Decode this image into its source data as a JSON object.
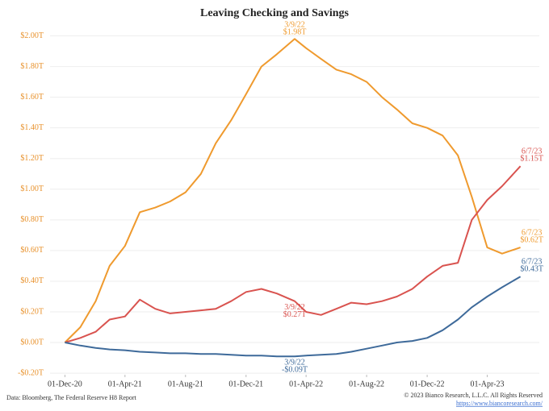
{
  "chart_data": {
    "type": "line",
    "title": "Leaving Checking and Savings",
    "x": [
      "2020-12-01",
      "2021-01-01",
      "2021-02-01",
      "2021-03-01",
      "2021-04-01",
      "2021-05-01",
      "2021-06-01",
      "2021-07-01",
      "2021-08-01",
      "2021-09-01",
      "2021-10-01",
      "2021-11-01",
      "2021-12-01",
      "2022-01-01",
      "2022-02-01",
      "2022-03-09",
      "2022-04-01",
      "2022-05-01",
      "2022-06-01",
      "2022-07-01",
      "2022-08-01",
      "2022-09-01",
      "2022-10-01",
      "2022-11-01",
      "2022-12-01",
      "2023-01-01",
      "2023-02-01",
      "2023-03-01",
      "2023-04-01",
      "2023-05-01",
      "2023-06-07"
    ],
    "series": [
      {
        "color": "#ef9a2e",
        "values": [
          0,
          0.1,
          0.27,
          0.5,
          0.63,
          0.85,
          0.88,
          0.92,
          0.98,
          1.1,
          1.3,
          1.45,
          1.62,
          1.8,
          1.88,
          1.98,
          1.92,
          1.85,
          1.78,
          1.75,
          1.7,
          1.6,
          1.52,
          1.43,
          1.4,
          1.35,
          1.22,
          0.95,
          0.62,
          0.58,
          0.62
        ],
        "annotations": [
          {
            "x": "2022-03-09",
            "date": "3/9/22",
            "value": 1.98,
            "label": "$1.98T"
          },
          {
            "x": "2023-06-07",
            "date": "6/7/23",
            "value": 0.62,
            "label": "$0.62T"
          }
        ]
      },
      {
        "color": "#d9534f",
        "values": [
          0,
          0.03,
          0.07,
          0.15,
          0.17,
          0.28,
          0.22,
          0.19,
          0.2,
          0.21,
          0.22,
          0.27,
          0.33,
          0.35,
          0.32,
          0.27,
          0.2,
          0.18,
          0.22,
          0.26,
          0.25,
          0.27,
          0.3,
          0.35,
          0.43,
          0.5,
          0.52,
          0.8,
          0.93,
          1.02,
          1.15
        ],
        "annotations": [
          {
            "x": "2022-03-09",
            "date": "3/9/22",
            "value": 0.27,
            "label": "$0.27T"
          },
          {
            "x": "2023-06-07",
            "date": "6/7/23",
            "value": 1.15,
            "label": "$1.15T"
          }
        ]
      },
      {
        "color": "#3e6a9a",
        "values": [
          0,
          -0.02,
          -0.035,
          -0.045,
          -0.05,
          -0.06,
          -0.065,
          -0.07,
          -0.07,
          -0.075,
          -0.075,
          -0.08,
          -0.085,
          -0.085,
          -0.09,
          -0.09,
          -0.085,
          -0.08,
          -0.075,
          -0.06,
          -0.04,
          -0.02,
          0,
          0.01,
          0.03,
          0.08,
          0.15,
          0.23,
          0.3,
          0.36,
          0.43
        ],
        "annotations": [
          {
            "x": "2022-03-09",
            "date": "3/9/22",
            "value": -0.09,
            "label": "-$0.09T"
          },
          {
            "x": "2023-06-07",
            "date": "6/7/23",
            "value": 0.43,
            "label": "$0.43T"
          }
        ]
      }
    ],
    "xlim": [
      "2020-11-01",
      "2023-07-15"
    ],
    "xticks": [
      {
        "value": "2020-12-01",
        "label": "01-Dec-20"
      },
      {
        "value": "2021-04-01",
        "label": "01-Apr-21"
      },
      {
        "value": "2021-08-01",
        "label": "01-Aug-21"
      },
      {
        "value": "2021-12-01",
        "label": "01-Dec-21"
      },
      {
        "value": "2022-04-01",
        "label": "01-Apr-22"
      },
      {
        "value": "2022-08-01",
        "label": "01-Aug-22"
      },
      {
        "value": "2022-12-01",
        "label": "01-Dec-22"
      },
      {
        "value": "2023-04-01",
        "label": "01-Apr-23"
      }
    ],
    "ylim": [
      -0.21,
      2.05
    ],
    "yticks": [
      {
        "value": -0.2,
        "label": "-$0.20T"
      },
      {
        "value": 0,
        "label": "$0.00T"
      },
      {
        "value": 0.2,
        "label": "$0.20T"
      },
      {
        "value": 0.4,
        "label": "$0.40T"
      },
      {
        "value": 0.6,
        "label": "$0.60T"
      },
      {
        "value": 0.8,
        "label": "$0.80T"
      },
      {
        "value": 1.0,
        "label": "$1.00T"
      },
      {
        "value": 1.2,
        "label": "$1.20T"
      },
      {
        "value": 1.4,
        "label": "$1.40T"
      },
      {
        "value": 1.6,
        "label": "$1.60T"
      },
      {
        "value": 1.8,
        "label": "$1.80T"
      },
      {
        "value": 2.0,
        "label": "$2.00T"
      }
    ],
    "grid": true,
    "source": "Data: Bloomberg, The Federal Reserve H8 Report",
    "copyright": "© 2023 Bianco Research, L.L.C. All Rights Reserved",
    "url": "https://www.biancoresearch.com/"
  }
}
